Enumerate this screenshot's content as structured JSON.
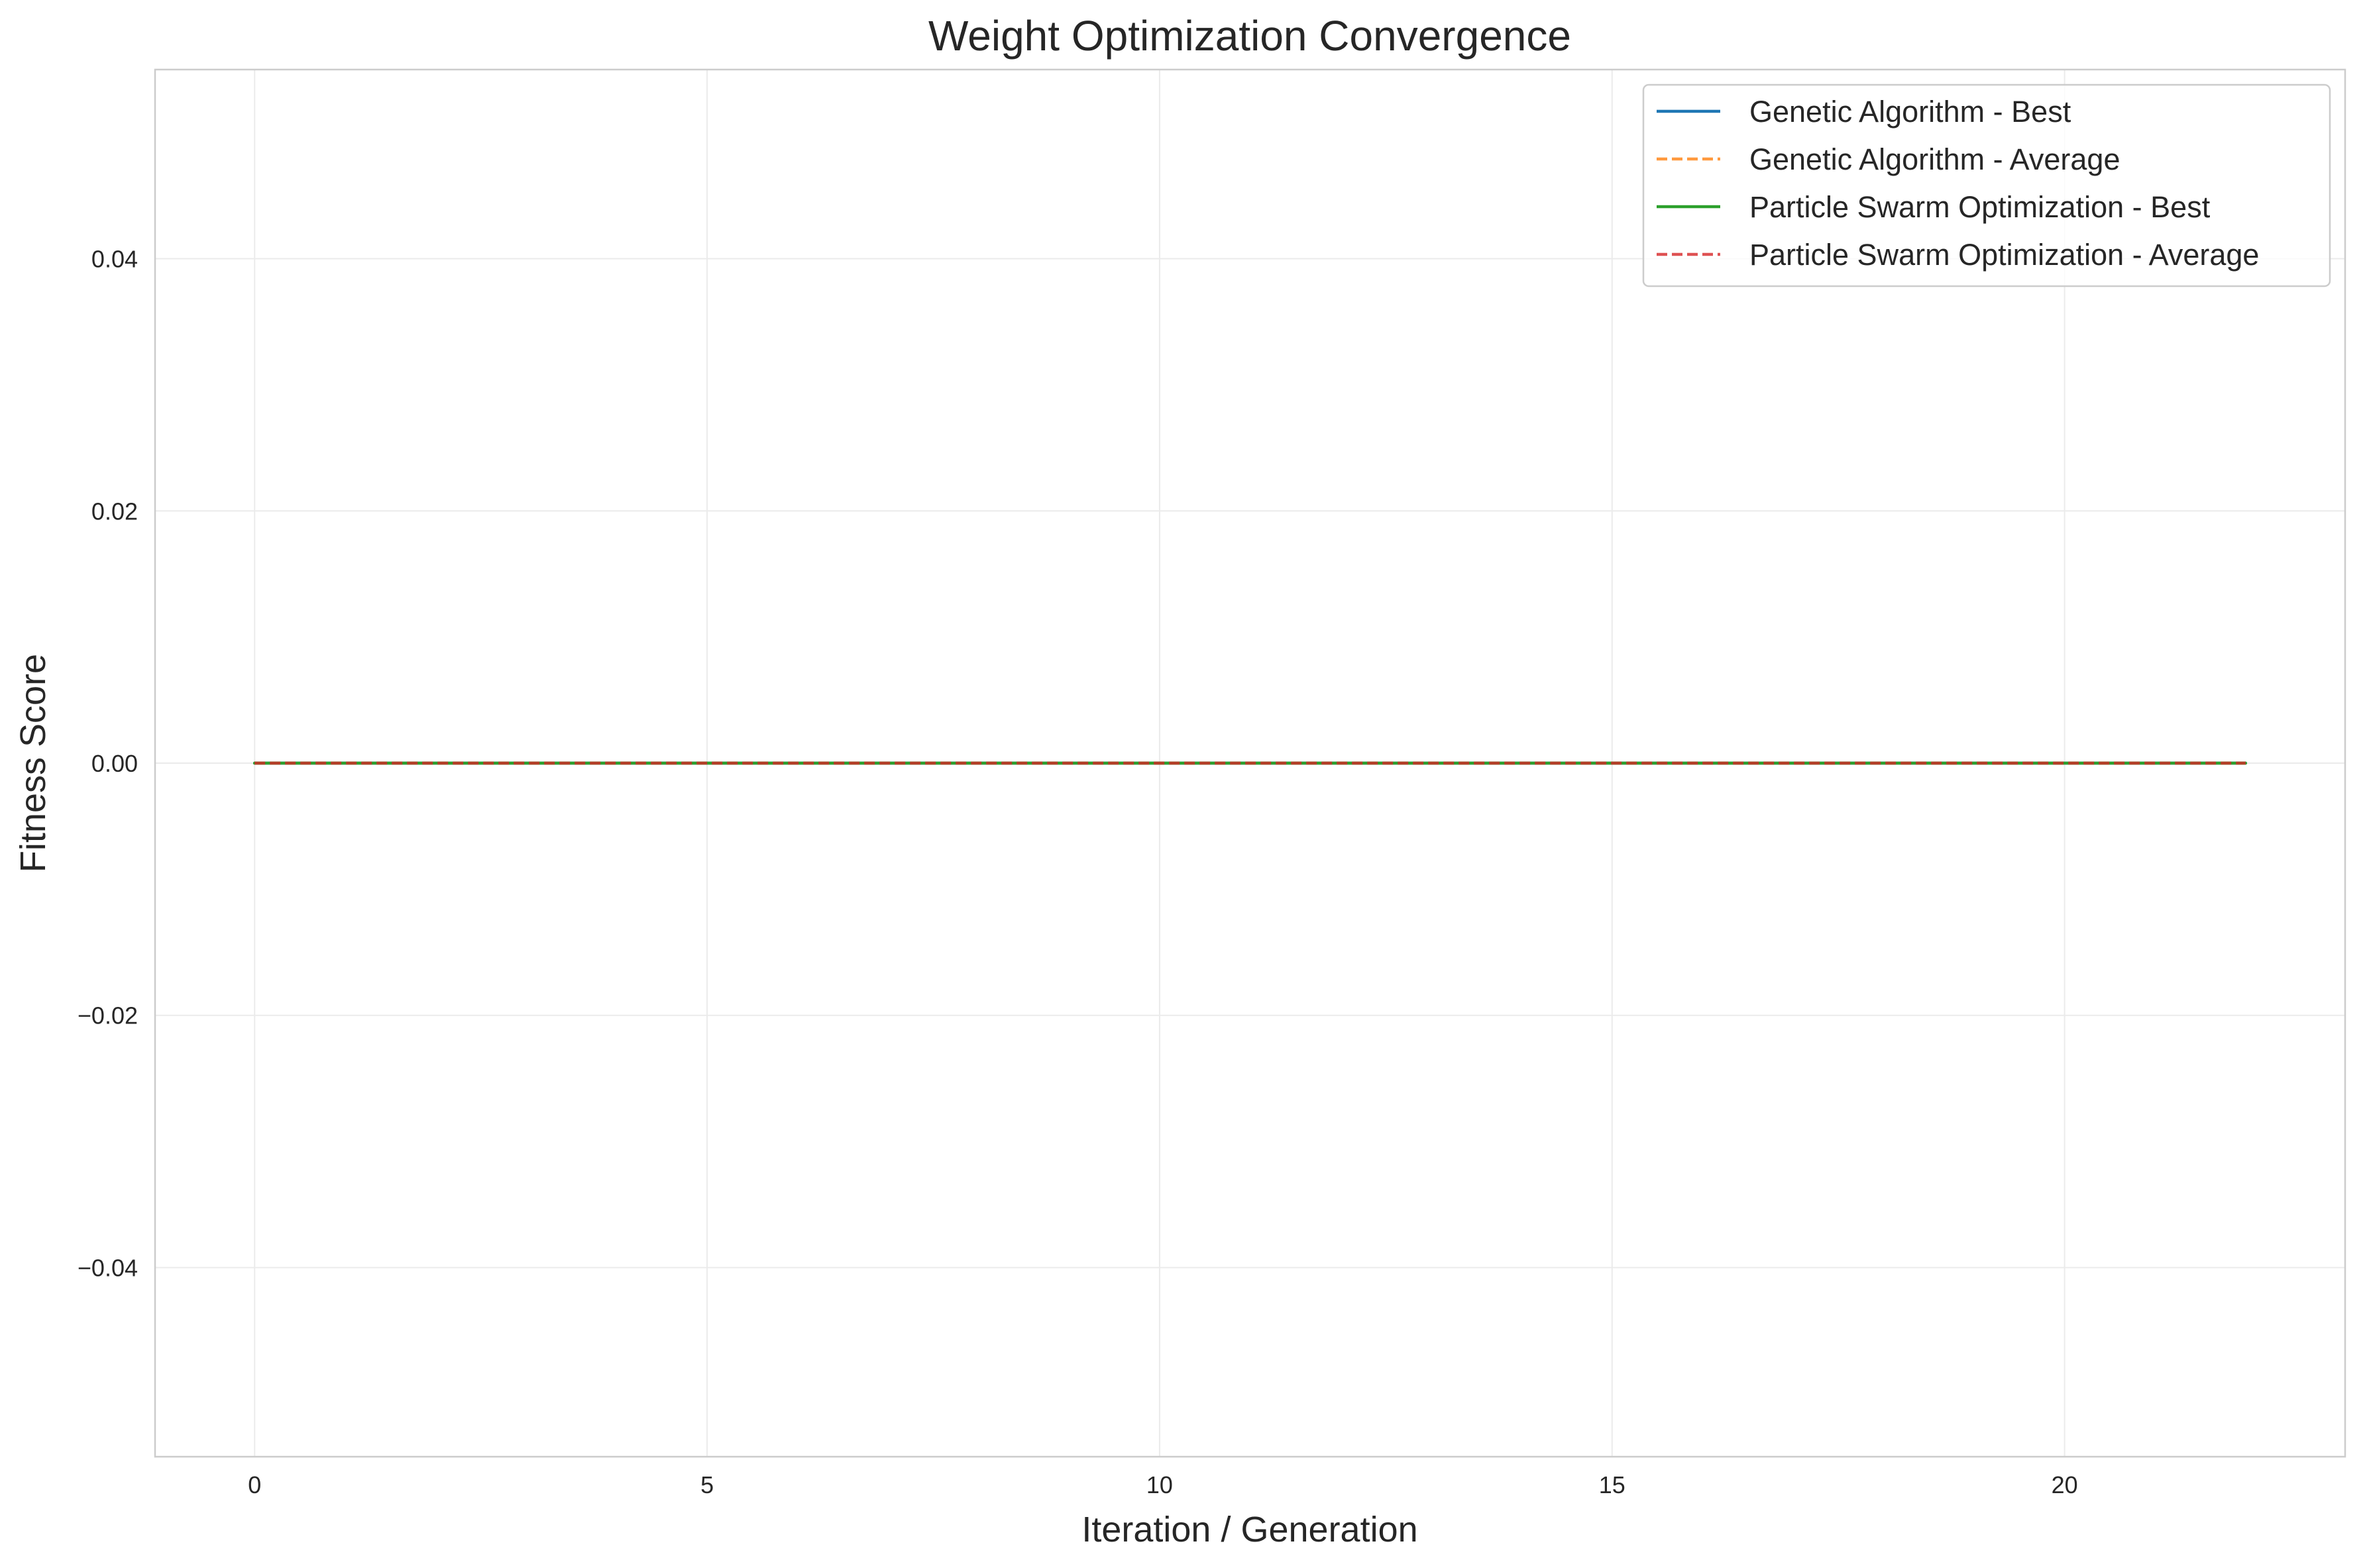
{
  "chart_data": {
    "type": "line",
    "title": "Weight Optimization Convergence",
    "xlabel": "Iteration / Generation",
    "ylabel": "Fitness Score",
    "xlim": [
      -1.1,
      23.1
    ],
    "ylim": [
      -0.055,
      0.055
    ],
    "xticks": [
      0,
      5,
      10,
      15,
      20
    ],
    "xtick_labels": [
      "0",
      "5",
      "10",
      "15",
      "20"
    ],
    "yticks": [
      -0.04,
      -0.02,
      0.0,
      0.02,
      0.04
    ],
    "ytick_labels": [
      "−0.04",
      "−0.02",
      "0.00",
      "0.02",
      "0.04"
    ],
    "grid": true,
    "legend_position": "top-right",
    "x": [
      0,
      1,
      2,
      3,
      4,
      5,
      6,
      7,
      8,
      9,
      10,
      11,
      12,
      13,
      14,
      15,
      16,
      17,
      18,
      19,
      20,
      21,
      22
    ],
    "series": [
      {
        "name": "Genetic Algorithm - Best",
        "color": "#1f77b4",
        "dash": "solid",
        "values": [
          0,
          0,
          0,
          0,
          0,
          0,
          0,
          0,
          0,
          0,
          0,
          0,
          0,
          0,
          0,
          0,
          0,
          0,
          0,
          0,
          0,
          0,
          0
        ]
      },
      {
        "name": "Genetic Algorithm - Average",
        "color": "#ff7f0e",
        "dash": "dashed",
        "values": [
          0,
          0,
          0,
          0,
          0,
          0,
          0,
          0,
          0,
          0,
          0,
          0,
          0,
          0,
          0,
          0,
          0,
          0,
          0,
          0,
          0,
          0,
          0
        ]
      },
      {
        "name": "Particle Swarm Optimization - Best",
        "color": "#2ca02c",
        "dash": "solid",
        "values": [
          0,
          0,
          0,
          0,
          0,
          0,
          0,
          0,
          0,
          0,
          0,
          0,
          0,
          0,
          0,
          0,
          0,
          0,
          0,
          0,
          0,
          0,
          0
        ]
      },
      {
        "name": "Particle Swarm Optimization - Average",
        "color": "#d62728",
        "dash": "dashed",
        "values": [
          0,
          0,
          0,
          0,
          0,
          0,
          0,
          0,
          0,
          0,
          0,
          0,
          0,
          0,
          0,
          0,
          0,
          0,
          0,
          0,
          0,
          0,
          0
        ]
      }
    ]
  }
}
